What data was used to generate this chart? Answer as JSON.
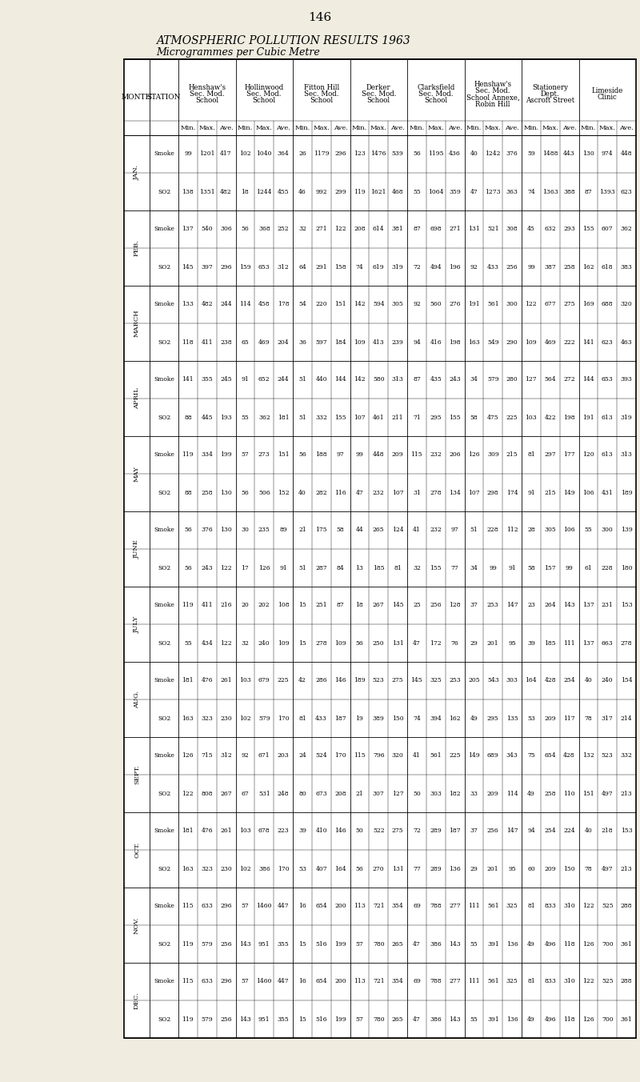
{
  "title_line1": "ATMOSPHERIC POLLUTION RESULTS 1963",
  "title_line2": "Microgrammes per Cubic Metre",
  "page_number": "146",
  "station_names": [
    "Henshaw's\nSec. Mod.\nSchool",
    "Hollinwood\nSec. Mod.\nSchool",
    "Fitton Hill\nSec. Mod.\nSchool",
    "Derker\nSec. Mod.\nSchool",
    "Clarksfield\nSec. Mod.\nSchool",
    "Henshaw's\nSec. Mod.\nSchool Annexe,\nRobin Hill",
    "Stationery\nDept.\nAscroft Street",
    "Limeside\nClinic"
  ],
  "sub_col_names": [
    "Min.",
    "Max.",
    "Ave."
  ],
  "table_data": [
    [
      "JAN.",
      "Smoke",
      99,
      1201,
      417,
      102,
      1040,
      364,
      26,
      1179,
      296,
      123,
      1476,
      539,
      56,
      1195,
      436,
      40,
      1242,
      376,
      59,
      1488,
      443,
      130,
      974,
      448
    ],
    [
      "",
      "SO2",
      138,
      1351,
      482,
      18,
      1244,
      455,
      46,
      992,
      299,
      119,
      1621,
      468,
      55,
      1064,
      359,
      47,
      1273,
      363,
      74,
      1363,
      388,
      87,
      1393,
      623
    ],
    [
      "FEB.",
      "Smoke",
      137,
      540,
      306,
      56,
      368,
      252,
      32,
      271,
      122,
      208,
      614,
      381,
      87,
      698,
      271,
      131,
      521,
      308,
      45,
      632,
      293,
      155,
      607,
      362
    ],
    [
      "",
      "SO2",
      145,
      397,
      296,
      159,
      653,
      312,
      64,
      291,
      158,
      74,
      619,
      319,
      72,
      494,
      196,
      92,
      433,
      256,
      99,
      387,
      258,
      162,
      618,
      383
    ],
    [
      "MARCH",
      "Smoke",
      133,
      482,
      244,
      114,
      458,
      178,
      54,
      220,
      151,
      142,
      594,
      305,
      92,
      560,
      276,
      191,
      561,
      300,
      122,
      677,
      275,
      169,
      688,
      320
    ],
    [
      "",
      "SO2",
      118,
      411,
      238,
      65,
      469,
      204,
      36,
      597,
      184,
      109,
      413,
      239,
      94,
      416,
      198,
      163,
      549,
      290,
      109,
      469,
      222,
      141,
      623,
      463
    ],
    [
      "APRIL",
      "Smoke",
      141,
      355,
      245,
      91,
      652,
      244,
      51,
      440,
      144,
      142,
      580,
      313,
      87,
      435,
      243,
      34,
      579,
      280,
      127,
      564,
      272,
      144,
      653,
      393
    ],
    [
      "",
      "SO2",
      88,
      445,
      193,
      55,
      362,
      181,
      51,
      332,
      155,
      107,
      461,
      211,
      71,
      295,
      155,
      58,
      475,
      225,
      103,
      422,
      198,
      191,
      613,
      319
    ],
    [
      "MAY",
      "Smoke",
      119,
      334,
      199,
      57,
      273,
      151,
      56,
      188,
      97,
      99,
      448,
      209,
      115,
      232,
      206,
      126,
      309,
      215,
      81,
      297,
      177,
      120,
      613,
      313
    ],
    [
      "",
      "SO2",
      88,
      258,
      130,
      56,
      506,
      152,
      40,
      282,
      116,
      47,
      232,
      107,
      31,
      278,
      134,
      107,
      298,
      174,
      91,
      215,
      149,
      106,
      431,
      189
    ],
    [
      "JUNE",
      "Smoke",
      56,
      376,
      130,
      30,
      235,
      89,
      21,
      175,
      58,
      44,
      265,
      124,
      41,
      232,
      97,
      51,
      228,
      112,
      28,
      305,
      106,
      55,
      300,
      139
    ],
    [
      "",
      "SO2",
      56,
      243,
      122,
      17,
      126,
      91,
      51,
      287,
      84,
      13,
      185,
      81,
      32,
      155,
      77,
      34,
      99,
      91,
      58,
      157,
      99,
      61,
      228,
      180
    ],
    [
      "JULY",
      "Smoke",
      119,
      411,
      216,
      20,
      202,
      108,
      15,
      251,
      87,
      18,
      267,
      145,
      25,
      256,
      128,
      37,
      253,
      147,
      23,
      264,
      143,
      137,
      231,
      153
    ],
    [
      "",
      "SO2",
      55,
      434,
      122,
      32,
      240,
      109,
      15,
      278,
      109,
      56,
      250,
      131,
      47,
      172,
      76,
      29,
      201,
      95,
      39,
      185,
      111,
      137,
      663,
      278
    ],
    [
      "AUG.",
      "Smoke",
      181,
      476,
      261,
      103,
      679,
      225,
      42,
      286,
      146,
      189,
      523,
      275,
      145,
      325,
      253,
      205,
      543,
      303,
      164,
      428,
      254,
      40,
      240,
      154
    ],
    [
      "",
      "SO2",
      163,
      323,
      230,
      102,
      579,
      170,
      81,
      433,
      187,
      19,
      389,
      150,
      74,
      394,
      162,
      49,
      295,
      135,
      53,
      209,
      117,
      78,
      317,
      214
    ],
    [
      "SEPT.",
      "Smoke",
      126,
      715,
      312,
      92,
      671,
      203,
      24,
      524,
      170,
      115,
      796,
      320,
      41,
      561,
      225,
      149,
      689,
      343,
      75,
      654,
      428,
      132,
      523,
      332
    ],
    [
      "",
      "SO2",
      122,
      808,
      267,
      67,
      531,
      248,
      80,
      673,
      208,
      21,
      307,
      127,
      50,
      303,
      182,
      33,
      209,
      114,
      49,
      258,
      110,
      151,
      497,
      213
    ],
    [
      "OCT.",
      "Smoke",
      181,
      476,
      261,
      103,
      678,
      223,
      39,
      410,
      146,
      50,
      522,
      275,
      72,
      289,
      187,
      37,
      256,
      147,
      94,
      254,
      224,
      40,
      218,
      153
    ],
    [
      "",
      "SO2",
      163,
      323,
      230,
      102,
      386,
      170,
      53,
      407,
      164,
      56,
      270,
      131,
      77,
      289,
      136,
      29,
      201,
      95,
      60,
      209,
      150,
      78,
      497,
      213
    ],
    [
      "NOV.",
      "Smoke",
      115,
      633,
      296,
      57,
      1460,
      447,
      16,
      654,
      200,
      113,
      721,
      354,
      69,
      788,
      277,
      111,
      561,
      325,
      81,
      833,
      310,
      122,
      525,
      288
    ],
    [
      "",
      "SO2",
      119,
      579,
      256,
      143,
      951,
      355,
      15,
      516,
      199,
      57,
      780,
      265,
      47,
      386,
      143,
      55,
      391,
      136,
      49,
      496,
      118,
      126,
      700,
      361
    ],
    [
      "DEC.",
      "Smoke",
      115,
      633,
      296,
      57,
      1460,
      447,
      16,
      654,
      200,
      113,
      721,
      354,
      69,
      788,
      277,
      111,
      561,
      325,
      81,
      833,
      310,
      122,
      525,
      288
    ],
    [
      "",
      "SO2",
      119,
      579,
      256,
      143,
      951,
      355,
      15,
      516,
      199,
      57,
      780,
      265,
      47,
      386,
      143,
      55,
      391,
      136,
      49,
      496,
      118,
      126,
      700,
      361
    ]
  ],
  "bg_color": "#f0ece0",
  "table_bg": "#ffffff"
}
